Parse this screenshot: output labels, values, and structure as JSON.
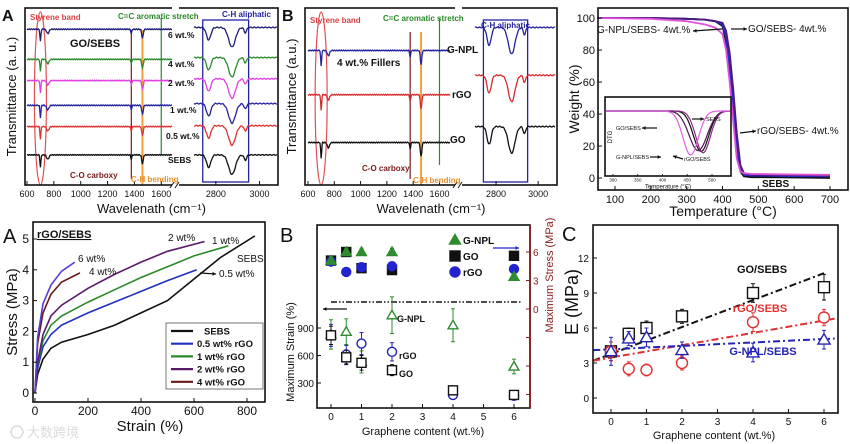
{
  "figure": {
    "watermark": "大数跨境"
  },
  "chart_data": [
    {
      "id": "ftir-go-sebs",
      "type": "line",
      "panel_label": "A",
      "title": "GO/SEBS",
      "xlabel": "Wavelenath (cm⁻¹)",
      "ylabel": "Transmittance (a. u.)",
      "xticks": [
        600,
        800,
        1000,
        1200,
        1400,
        1600,
        2800,
        3000
      ],
      "x_break": [
        1680,
        2700
      ],
      "xlim": [
        600,
        3080
      ],
      "ylim": [
        0,
        100
      ],
      "peaks_center_depth_width": [
        [
          700,
          7,
          5
        ],
        [
          755,
          2.5,
          12
        ],
        [
          1377,
          2.5,
          5
        ],
        [
          1460,
          5,
          8
        ],
        [
          2767,
          7,
          14
        ],
        [
          2874,
          11,
          22
        ],
        [
          2935,
          3,
          8
        ]
      ],
      "series": [
        {
          "key": "6wt",
          "label": "6 wt.%",
          "color": "#1c1c7a",
          "baseline": [
            88,
            89
          ]
        },
        {
          "key": "4wt",
          "label": "4 wt.%",
          "color": "#2a8a2a",
          "baseline": [
            71,
            72
          ]
        },
        {
          "key": "2wt",
          "label": "2 wt.%",
          "color": "#e040e0",
          "baseline": [
            59,
            60
          ]
        },
        {
          "key": "1wt",
          "label": "1 wt.%",
          "color": "#2323a0",
          "baseline": [
            45,
            46
          ]
        },
        {
          "key": "0.5wt",
          "label": "0.5 wt.%",
          "color": "#e03030",
          "baseline": [
            33,
            33.5
          ]
        },
        {
          "key": "sebs",
          "label": "SEBS",
          "color": "#111111",
          "baseline": [
            17,
            17
          ]
        }
      ],
      "annotations": {
        "styrene": "Styrene band",
        "cc": "C=C aromatic stretch",
        "ch_aliphatic": "C-H aliphatic",
        "co": "C-O carboxy",
        "ch_bending": "C-H bending"
      }
    },
    {
      "id": "ftir-fillers",
      "type": "line",
      "panel_label": "B",
      "title": "4 wt.% Fillers",
      "xlabel": "Wavelenath (cm⁻¹)",
      "ylabel": "Transmittance (a.u.)",
      "xticks": [
        600,
        800,
        1000,
        1200,
        1400,
        1600,
        2800,
        3000
      ],
      "x_break": [
        1680,
        2700
      ],
      "xlim": [
        600,
        3080
      ],
      "ylim": [
        0,
        100
      ],
      "peaks_center_depth_width": [
        [
          700,
          9,
          5
        ],
        [
          755,
          3,
          12
        ],
        [
          1377,
          4,
          5
        ],
        [
          1460,
          8,
          8
        ],
        [
          2767,
          10,
          14
        ],
        [
          2874,
          15,
          22
        ],
        [
          2935,
          4,
          8
        ]
      ],
      "series": [
        {
          "key": "gnpl",
          "label": "G-NPL",
          "color": "#2323a0",
          "baseline": [
            76,
            89
          ]
        },
        {
          "key": "rgo",
          "label": "rGO",
          "color": "#d82a2a",
          "baseline": [
            51,
            62
          ]
        },
        {
          "key": "go",
          "label": "GO",
          "color": "#111111",
          "baseline": [
            24,
            33
          ]
        }
      ],
      "annotations": {
        "styrene": "Styrene band",
        "cc": "C=C aromatic stretch",
        "ch_aliphatic": "C-H aliphatic",
        "co": "C-O carboxy",
        "ch_bending": "C-H bending"
      }
    },
    {
      "id": "tga",
      "type": "line",
      "xlabel": "Temperature (°C)",
      "ylabel": "Weight (%)",
      "xticks": [
        100,
        200,
        300,
        400,
        500,
        600,
        700
      ],
      "yticks": [
        0,
        20,
        40,
        60,
        80,
        100
      ],
      "xlim": [
        53,
        750
      ],
      "ylim": [
        -7.5,
        106
      ],
      "x": [
        50,
        200,
        300,
        350,
        380,
        400,
        410,
        420,
        430,
        440,
        450,
        460,
        480,
        500,
        600,
        700
      ],
      "series": [
        {
          "key": "sebs",
          "name": "SEBS",
          "color": "#111111",
          "y": [
            100,
            100,
            99.5,
            99,
            98,
            95,
            85,
            65,
            40,
            15,
            4,
            1,
            0.5,
            0.5,
            0.3,
            0
          ]
        },
        {
          "key": "go",
          "name": "GO/SEBS- 4wt.%",
          "color": "#2a2ad0",
          "y": [
            100,
            100,
            99.5,
            99,
            98,
            96,
            88,
            70,
            45,
            20,
            6,
            2,
            1.5,
            1.5,
            1.2,
            1
          ]
        },
        {
          "key": "rgo",
          "name": "rGO/SEBS- 4wt.%",
          "color": "#4b1a7a",
          "y": [
            100,
            100,
            99.5,
            99,
            98,
            97,
            92,
            78,
            55,
            28,
            8,
            3,
            2,
            2,
            1.8,
            1.5
          ]
        },
        {
          "key": "gnpl",
          "name": "G-NPL/SEBS- 4wt.%",
          "color": "#e050d8",
          "y": [
            100,
            99.5,
            98,
            96,
            94,
            90,
            80,
            60,
            35,
            12,
            4,
            3,
            2.5,
            2.5,
            2.2,
            2
          ]
        }
      ],
      "labels": {
        "gnpl": "G-NPL/SEBS- 4wt.%",
        "go": "GO/SEBS- 4wt.%",
        "rgo": "rGO/SEBS- 4wt.%",
        "sebs": "SEBS"
      },
      "inset": {
        "type": "line",
        "xlabel": "Temperature (°C)",
        "ylabel": "DTG",
        "xticks": [
          300,
          350,
          400,
          450,
          500
        ],
        "xlim": [
          284,
          538
        ],
        "series": [
          {
            "key": "sebs",
            "name": "SEBS",
            "color": "#111111",
            "peak_temp": 478,
            "depth": 0.92,
            "width": 22
          },
          {
            "key": "go",
            "name": "GO/SEBS",
            "color": "#4b1a4a",
            "peak_temp": 472,
            "depth": 0.9,
            "width": 26
          },
          {
            "key": "rgo",
            "name": "rGO/SEBS",
            "color": "#8a2a8a",
            "peak_temp": 482,
            "depth": 0.95,
            "width": 21
          },
          {
            "key": "gnpl",
            "name": "G-NPL/SEBS",
            "color": "#e060e0",
            "peak_temp": 457,
            "depth": 1.0,
            "width": 22
          }
        ]
      }
    },
    {
      "id": "stress-strain",
      "type": "line",
      "panel_label": "A",
      "title": "rGO/SEBS",
      "xlabel": "Strain (%)",
      "ylabel": "Stress (MPa)",
      "xticks": [
        0,
        200,
        400,
        600,
        800
      ],
      "yticks": [
        0,
        1,
        2,
        3,
        4,
        5
      ],
      "xlim": [
        -8,
        868
      ],
      "ylim": [
        -0.05,
        5.85
      ],
      "series": [
        {
          "key": "sebs",
          "name": "SEBS",
          "label": "SEBS",
          "color": "#111111",
          "legend": true,
          "points": [
            [
              0,
              0
            ],
            [
              10,
              0.6
            ],
            [
              30,
              1.1
            ],
            [
              60,
              1.45
            ],
            [
              100,
              1.65
            ],
            [
              200,
              1.9
            ],
            [
              300,
              2.2
            ],
            [
              400,
              2.6
            ],
            [
              500,
              3.0
            ],
            [
              600,
              3.7
            ],
            [
              700,
              4.4
            ],
            [
              830,
              5.1
            ]
          ]
        },
        {
          "key": "0.5wt",
          "name": "0.5 wt% rGO",
          "label": "0.5 wt%",
          "color": "#1f2fbf",
          "legend": true,
          "points": [
            [
              0,
              0
            ],
            [
              10,
              0.8
            ],
            [
              30,
              1.5
            ],
            [
              60,
              1.9
            ],
            [
              100,
              2.2
            ],
            [
              200,
              2.6
            ],
            [
              300,
              2.95
            ],
            [
              400,
              3.3
            ],
            [
              500,
              3.65
            ],
            [
              610,
              4.0
            ]
          ]
        },
        {
          "key": "1wt",
          "name": "1 wt% rGO",
          "label": "1 wt%",
          "color": "#2a8a2a",
          "legend": true,
          "points": [
            [
              0,
              0
            ],
            [
              10,
              0.9
            ],
            [
              30,
              1.7
            ],
            [
              60,
              2.2
            ],
            [
              100,
              2.5
            ],
            [
              200,
              2.95
            ],
            [
              300,
              3.35
            ],
            [
              400,
              3.75
            ],
            [
              500,
              4.1
            ],
            [
              600,
              4.45
            ],
            [
              730,
              4.78
            ]
          ]
        },
        {
          "key": "2wt",
          "name": "2 wt% rGO",
          "label": "2 wt%",
          "color": "#5a1a6a",
          "legend": true,
          "points": [
            [
              0,
              0
            ],
            [
              10,
              1.0
            ],
            [
              30,
              1.9
            ],
            [
              60,
              2.5
            ],
            [
              100,
              2.85
            ],
            [
              200,
              3.4
            ],
            [
              300,
              3.85
            ],
            [
              400,
              4.25
            ],
            [
              500,
              4.6
            ],
            [
              640,
              4.92
            ]
          ]
        },
        {
          "key": "4wt",
          "name": "4 wt% rGO",
          "label": "4 wt%",
          "color": "#6a1a1a",
          "legend": true,
          "points": [
            [
              0,
              0
            ],
            [
              10,
              1.6
            ],
            [
              30,
              2.6
            ],
            [
              60,
              3.2
            ],
            [
              100,
              3.6
            ],
            [
              170,
              3.9
            ]
          ]
        },
        {
          "key": "6wt",
          "name": "6 wt% rGO",
          "label": "6 wt%",
          "color": "#5a3ad8",
          "legend": false,
          "points": [
            [
              0,
              0
            ],
            [
              10,
              1.8
            ],
            [
              30,
              2.9
            ],
            [
              60,
              3.5
            ],
            [
              100,
              3.95
            ],
            [
              150,
              4.25
            ]
          ]
        }
      ]
    },
    {
      "id": "max-strain-stress",
      "type": "scatter",
      "panel_label": "B",
      "xlabel": "Graphene content (wt.%)",
      "ylabel": "Maximum Strain (%)",
      "ylabel_right": "Maximum Stress (MPa)",
      "xticks": [
        0,
        1,
        2,
        3,
        4,
        5,
        6
      ],
      "yticks": [
        300,
        600,
        900
      ],
      "yticks_right": [
        6,
        3,
        0
      ],
      "xlim": [
        -0.46,
        6.52
      ],
      "ylim": [
        164,
        1462
      ],
      "ylim_right": [
        -10.4,
        8.8
      ],
      "x": [
        0,
        0.5,
        1,
        2,
        4,
        6
      ],
      "strain_series": [
        {
          "key": "gnpl",
          "name": "G-NPL",
          "shape": "triangle",
          "color": "#2e8b2e",
          "y": [
            830,
            860,
            530,
            1040,
            930,
            480
          ],
          "err": [
            80,
            70,
            60,
            100,
            90,
            40
          ]
        },
        {
          "key": "rgo",
          "name": "rGO",
          "shape": "circle",
          "color": "#2323b8",
          "y": [
            820,
            610,
            730,
            640,
            170,
            160
          ],
          "err": [
            60,
            50,
            60,
            50,
            20,
            15
          ]
        },
        {
          "key": "go",
          "name": "GO",
          "shape": "square",
          "color": "#111111",
          "y": [
            820,
            580,
            520,
            440,
            220,
            170
          ],
          "err": [
            50,
            40,
            40,
            30,
            20,
            15
          ]
        }
      ],
      "stress_series": [
        {
          "key": "go",
          "name": "GO",
          "shape": "square",
          "color": "#111111",
          "y": [
            5.1,
            6.0,
            4.3,
            4.1,
            null,
            5.6
          ],
          "err": [
            0.4,
            0.4,
            0.4,
            0.3,
            null,
            0.3
          ]
        },
        {
          "key": "rgo",
          "name": "rGO",
          "shape": "circle",
          "color": "#2323d0",
          "y": [
            5.0,
            3.9,
            4.4,
            4.5,
            null,
            4.2
          ],
          "err": [
            0.3,
            0.3,
            0.4,
            0.3,
            null,
            0.3
          ]
        },
        {
          "key": "gnpl",
          "name": "G-NPL",
          "shape": "triangle",
          "color": "#2e8b2e",
          "y": [
            5.1,
            6.0,
            6.0,
            6.0,
            null,
            3.4
          ],
          "err": [
            0.4,
            0.4,
            0.4,
            0.4,
            null,
            0.3
          ]
        }
      ],
      "legend": [
        {
          "name": "G-NPL",
          "shape": "triangle",
          "color": "#2e8b2e"
        },
        {
          "name": "GO",
          "shape": "square",
          "color": "#111111"
        },
        {
          "name": "rGO",
          "shape": "circle",
          "color": "#2323d0"
        }
      ],
      "annotations": {
        "gnpl": "G-NPL",
        "rgo": "rGO",
        "go": "GO"
      },
      "right_axis_color": "#8b1a1a"
    },
    {
      "id": "modulus",
      "type": "scatter",
      "panel_label": "C",
      "xlabel": "Graphene content (wt.%)",
      "ylabel": "E (MPa)",
      "xticks": [
        0,
        1,
        2,
        3,
        4,
        5,
        6
      ],
      "yticks": [
        0,
        3,
        6,
        9,
        12
      ],
      "xlim": [
        -0.5,
        6.4
      ],
      "ylim": [
        -1.3,
        14.8
      ],
      "x": [
        0,
        0.5,
        1,
        2,
        4,
        6
      ],
      "series": [
        {
          "key": "go",
          "name": "GO/SEBS",
          "shape": "square",
          "color": "#111111",
          "y": [
            4.0,
            5.5,
            6.0,
            7.0,
            9.0,
            9.5
          ],
          "err": [
            0.8,
            0.5,
            0.6,
            0.6,
            0.8,
            1.1
          ],
          "fit": [
            [
              -0.5,
              3.2
            ],
            [
              6,
              10.7
            ]
          ]
        },
        {
          "key": "rgo",
          "name": "rGO/SEBS",
          "shape": "circle",
          "color": "#e03030",
          "y": [
            4.0,
            2.5,
            2.4,
            3.0,
            6.5,
            6.9
          ],
          "err": [
            0.8,
            0.6,
            0.5,
            0.6,
            0.8,
            0.7
          ],
          "fit": [
            [
              -0.5,
              3.2
            ],
            [
              6.3,
              6.8
            ]
          ]
        },
        {
          "key": "gnpl",
          "name": "G-NPL/SEBS",
          "shape": "triangle",
          "color": "#2323b8",
          "y": [
            4.0,
            5.1,
            5.2,
            4.1,
            3.9,
            5.0
          ],
          "err": [
            1.2,
            0.6,
            0.8,
            0.7,
            0.8,
            0.8
          ],
          "fit": [
            [
              -0.5,
              4.1
            ],
            [
              6.3,
              5.1
            ]
          ]
        }
      ]
    }
  ]
}
